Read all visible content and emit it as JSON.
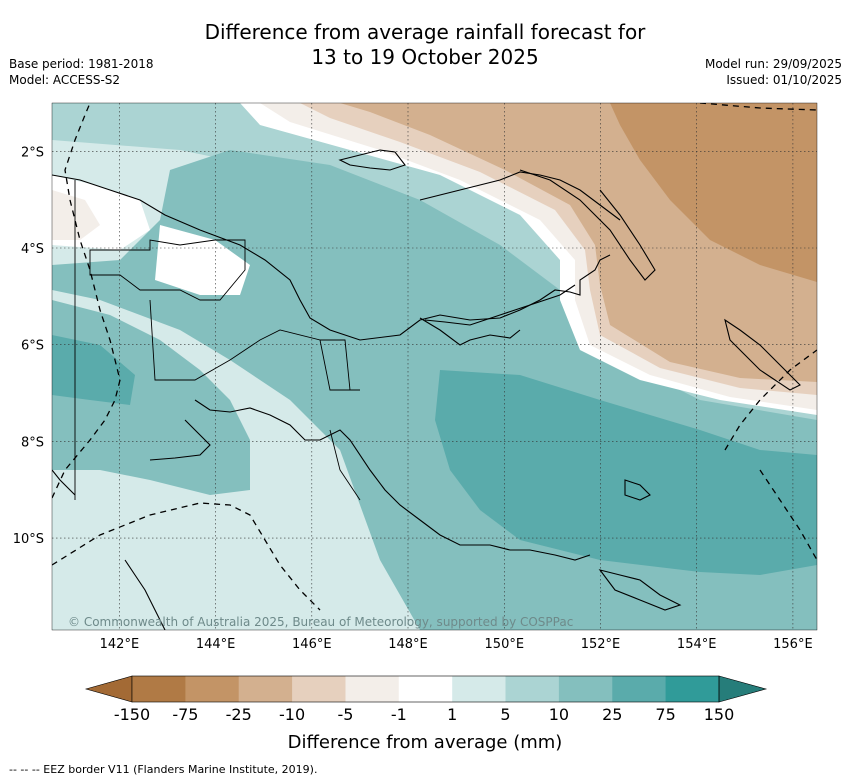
{
  "header": {
    "title_line1": "Difference from average rainfall forecast for",
    "title_line2": "13 to 19 October 2025",
    "base_period": "Base period: 1981-2018",
    "model": "Model: ACCESS-S2",
    "model_run": "Model run: 29/09/2025",
    "issued": "Issued: 01/10/2025"
  },
  "map": {
    "copyright": "© Commonwealth of Australia 2025, Bureau of Meteorology, supported by COSPPac",
    "lon_labels": [
      "142°E",
      "144°E",
      "146°E",
      "148°E",
      "150°E",
      "152°E",
      "154°E",
      "156°E"
    ],
    "lat_labels": [
      "2°S",
      "4°S",
      "6°S",
      "8°S",
      "10°S"
    ],
    "lon_values": [
      142,
      144,
      146,
      148,
      150,
      152,
      154,
      156
    ],
    "lat_values": [
      -2,
      -4,
      -6,
      -8,
      -10
    ],
    "extent": {
      "lon_min": 140.6,
      "lon_max": 156.5,
      "lat_min": -11.9,
      "lat_max": -1.0
    }
  },
  "colorbar": {
    "title": "Difference from average (mm)",
    "ticks": [
      "-150",
      "-75",
      "-25",
      "-10",
      "-5",
      "-1",
      "1",
      "5",
      "10",
      "25",
      "75",
      "150"
    ],
    "colors": [
      "#a36a35",
      "#b07a45",
      "#c39466",
      "#d3b08f",
      "#e6d0be",
      "#f3eee9",
      "#ffffff",
      "#d5eae9",
      "#abd4d3",
      "#84bfbe",
      "#5aabab",
      "#309b99",
      "#267d7a"
    ]
  },
  "footer": {
    "legend_line": "--  --  -- EEZ border V11 (Flanders Marine Institute, 2019)."
  }
}
